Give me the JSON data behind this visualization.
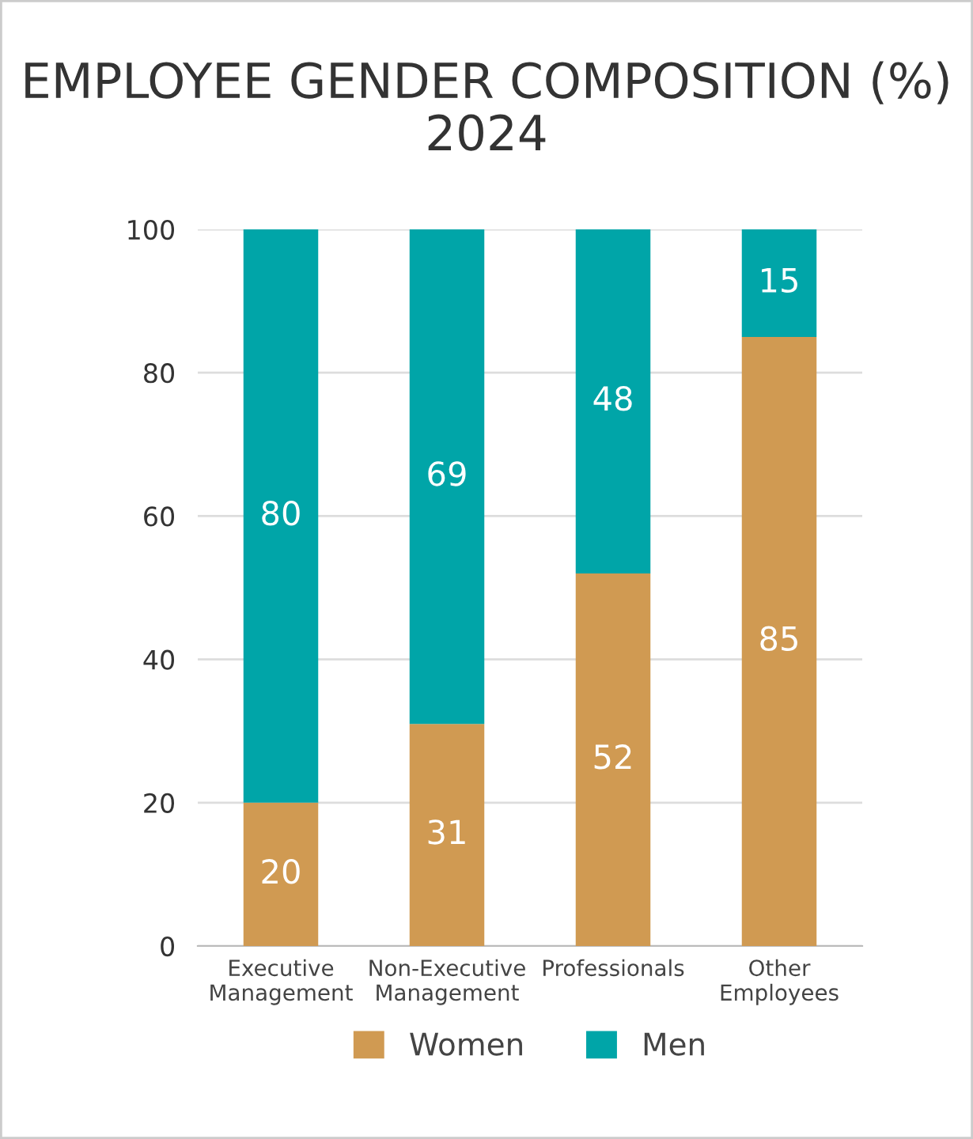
{
  "chart_data": {
    "type": "bar",
    "title": "EMPLOYEE GENDER COMPOSITION (%)\n2024",
    "categories": [
      "Executive\nManagement",
      "Non-Executive\nManagement",
      "Professionals",
      "Other\nEmployees"
    ],
    "stacked": true,
    "series": [
      {
        "name": "Women",
        "color": "#d09a52",
        "values": [
          20,
          31,
          52,
          85
        ]
      },
      {
        "name": "Men",
        "color": "#00a5a8",
        "values": [
          80,
          69,
          48,
          15
        ]
      }
    ],
    "ylim": [
      0,
      100
    ],
    "yticks": [
      0,
      20,
      40,
      60,
      80,
      100
    ],
    "grid": "y",
    "legend": "bottom",
    "data_labels": true
  }
}
